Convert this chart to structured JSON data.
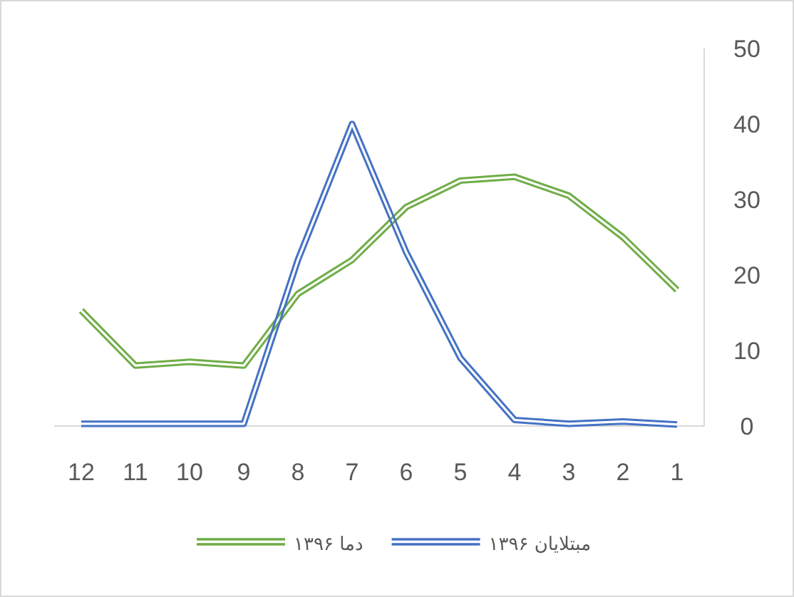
{
  "chart_data": {
    "type": "line",
    "categories": [
      "12",
      "11",
      "10",
      "9",
      "8",
      "7",
      "6",
      "5",
      "4",
      "3",
      "2",
      "1"
    ],
    "series": [
      {
        "name": "۱۳۹۶ دما",
        "color": "#70ad47",
        "values": [
          15.3,
          8,
          8.5,
          8,
          17.5,
          22,
          29,
          32.5,
          33,
          30.5,
          25,
          18
        ]
      },
      {
        "name": "۱۳۹۶ مبتلایان",
        "color": "#4472c4",
        "values": [
          0.3,
          0.3,
          0.3,
          0.3,
          22,
          40,
          23,
          9,
          0.8,
          0.3,
          0.6,
          0.2
        ]
      }
    ],
    "ylim": [
      0,
      50
    ],
    "yticks": [
      0,
      10,
      20,
      30,
      40,
      50
    ],
    "legend": "bottom"
  }
}
